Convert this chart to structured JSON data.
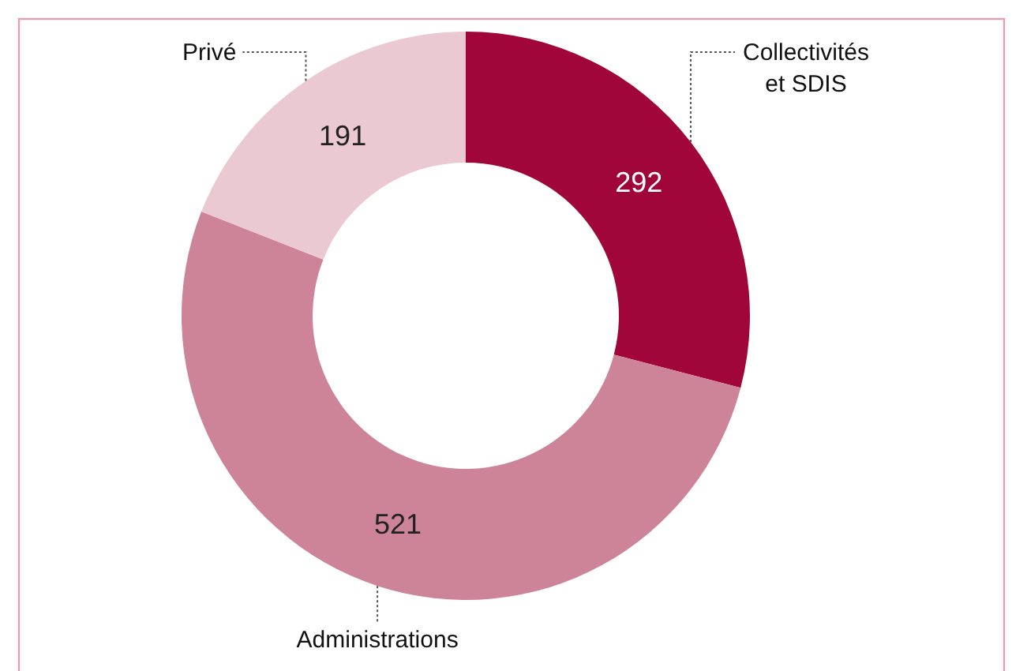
{
  "chart_data": {
    "type": "donut",
    "categories": [
      "Collectivités et SDIS",
      "Administrations",
      "Privé"
    ],
    "values": [
      292,
      521,
      191
    ],
    "colors": [
      "#a0063a",
      "#cd8499",
      "#ebc9d3"
    ],
    "data_labels": true
  }
}
